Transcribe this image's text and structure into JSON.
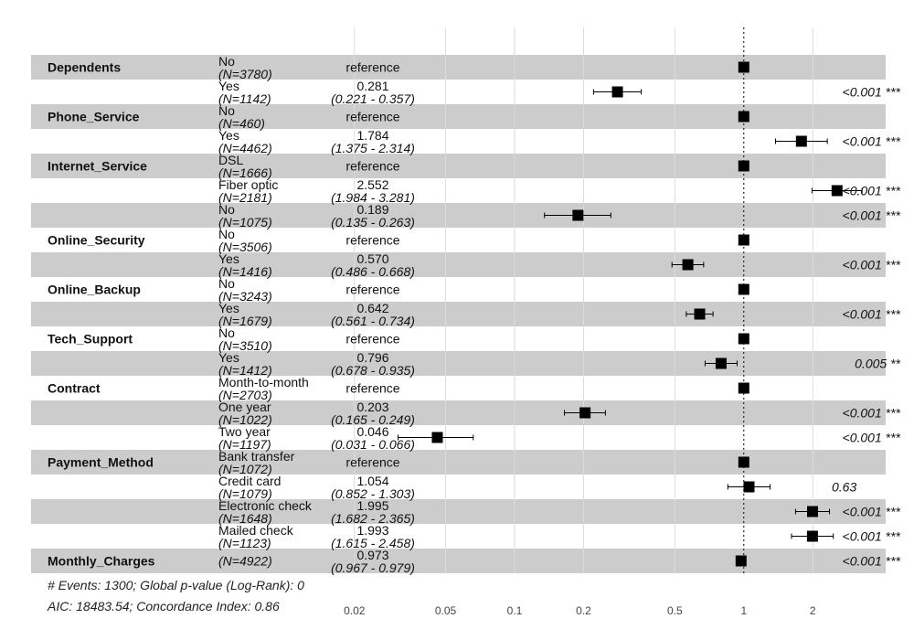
{
  "chart_data": {
    "type": "forest",
    "title": "",
    "xlabel": "",
    "ylabel": "",
    "x_scale": "log",
    "xlim": [
      0.0155,
      3.9
    ],
    "reference_line": 1,
    "grid": true,
    "x_ticks": [
      {
        "value": 0.02,
        "label": "0.02"
      },
      {
        "value": 0.05,
        "label": "0.05"
      },
      {
        "value": 0.1,
        "label": "0.1"
      },
      {
        "value": 0.2,
        "label": "0.2"
      },
      {
        "value": 0.5,
        "label": "0.5"
      },
      {
        "value": 1,
        "label": "1"
      },
      {
        "value": 2,
        "label": "2"
      }
    ],
    "rows": [
      {
        "variable": "Dependents",
        "level": "No",
        "n": "(N=3780)",
        "estimate": 1,
        "estimate_text": "reference",
        "ci_text": "",
        "lower": 1,
        "upper": 1,
        "p_text": "",
        "shaded": true
      },
      {
        "variable": "",
        "level": "Yes",
        "n": "(N=1142)",
        "estimate": 0.281,
        "estimate_text": "0.281",
        "ci_text": "(0.221 - 0.357)",
        "lower": 0.221,
        "upper": 0.357,
        "p_text": "<0.001 ***",
        "shaded": false
      },
      {
        "variable": "Phone_Service",
        "level": "No",
        "n": "(N=460)",
        "estimate": 1,
        "estimate_text": "reference",
        "ci_text": "",
        "lower": 1,
        "upper": 1,
        "p_text": "",
        "shaded": true
      },
      {
        "variable": "",
        "level": "Yes",
        "n": "(N=4462)",
        "estimate": 1.784,
        "estimate_text": "1.784",
        "ci_text": "(1.375 - 2.314)",
        "lower": 1.375,
        "upper": 2.314,
        "p_text": "<0.001 ***",
        "shaded": false
      },
      {
        "variable": "Internet_Service",
        "level": "DSL",
        "n": "(N=1666)",
        "estimate": 1,
        "estimate_text": "reference",
        "ci_text": "",
        "lower": 1,
        "upper": 1,
        "p_text": "",
        "shaded": true
      },
      {
        "variable": "",
        "level": "Fiber optic",
        "n": "(N=2181)",
        "estimate": 2.552,
        "estimate_text": "2.552",
        "ci_text": "(1.984 - 3.281)",
        "lower": 1.984,
        "upper": 3.281,
        "p_text": "<0.001 ***",
        "shaded": false
      },
      {
        "variable": "",
        "level": "No",
        "n": "(N=1075)",
        "estimate": 0.189,
        "estimate_text": "0.189",
        "ci_text": "(0.135 - 0.263)",
        "lower": 0.135,
        "upper": 0.263,
        "p_text": "<0.001 ***",
        "shaded": true
      },
      {
        "variable": "Online_Security",
        "level": "No",
        "n": "(N=3506)",
        "estimate": 1,
        "estimate_text": "reference",
        "ci_text": "",
        "lower": 1,
        "upper": 1,
        "p_text": "",
        "shaded": false
      },
      {
        "variable": "",
        "level": "Yes",
        "n": "(N=1416)",
        "estimate": 0.57,
        "estimate_text": "0.570",
        "ci_text": "(0.486 - 0.668)",
        "lower": 0.486,
        "upper": 0.668,
        "p_text": "<0.001 ***",
        "shaded": true
      },
      {
        "variable": "Online_Backup",
        "level": "No",
        "n": "(N=3243)",
        "estimate": 1,
        "estimate_text": "reference",
        "ci_text": "",
        "lower": 1,
        "upper": 1,
        "p_text": "",
        "shaded": false
      },
      {
        "variable": "",
        "level": "Yes",
        "n": "(N=1679)",
        "estimate": 0.642,
        "estimate_text": "0.642",
        "ci_text": "(0.561 - 0.734)",
        "lower": 0.561,
        "upper": 0.734,
        "p_text": "<0.001 ***",
        "shaded": true
      },
      {
        "variable": "Tech_Support",
        "level": "No",
        "n": "(N=3510)",
        "estimate": 1,
        "estimate_text": "reference",
        "ci_text": "",
        "lower": 1,
        "upper": 1,
        "p_text": "",
        "shaded": false
      },
      {
        "variable": "",
        "level": "Yes",
        "n": "(N=1412)",
        "estimate": 0.796,
        "estimate_text": "0.796",
        "ci_text": "(0.678 - 0.935)",
        "lower": 0.678,
        "upper": 0.935,
        "p_text": "0.005 **",
        "shaded": true
      },
      {
        "variable": "Contract",
        "level": "Month-to-month",
        "n": "(N=2703)",
        "estimate": 1,
        "estimate_text": "reference",
        "ci_text": "",
        "lower": 1,
        "upper": 1,
        "p_text": "",
        "shaded": false
      },
      {
        "variable": "",
        "level": "One year",
        "n": "(N=1022)",
        "estimate": 0.203,
        "estimate_text": "0.203",
        "ci_text": "(0.165 - 0.249)",
        "lower": 0.165,
        "upper": 0.249,
        "p_text": "<0.001 ***",
        "shaded": true
      },
      {
        "variable": "",
        "level": "Two year",
        "n": "(N=1197)",
        "estimate": 0.046,
        "estimate_text": "0.046",
        "ci_text": "(0.031 - 0.066)",
        "lower": 0.031,
        "upper": 0.066,
        "p_text": "<0.001 ***",
        "shaded": false
      },
      {
        "variable": "Payment_Method",
        "level": "Bank transfer",
        "n": "(N=1072)",
        "estimate": 1,
        "estimate_text": "reference",
        "ci_text": "",
        "lower": 1,
        "upper": 1,
        "p_text": "",
        "shaded": true
      },
      {
        "variable": "",
        "level": "Credit card",
        "n": "(N=1079)",
        "estimate": 1.054,
        "estimate_text": "1.054",
        "ci_text": "(0.852 - 1.303)",
        "lower": 0.852,
        "upper": 1.303,
        "p_text": "0.63",
        "shaded": false
      },
      {
        "variable": "",
        "level": "Electronic check",
        "n": "(N=1648)",
        "estimate": 1.995,
        "estimate_text": "1.995",
        "ci_text": "(1.682 - 2.365)",
        "lower": 1.682,
        "upper": 2.365,
        "p_text": "<0.001 ***",
        "shaded": true
      },
      {
        "variable": "",
        "level": "Mailed check",
        "n": "(N=1123)",
        "estimate": 1.993,
        "estimate_text": "1.993",
        "ci_text": "(1.615 - 2.458)",
        "lower": 1.615,
        "upper": 2.458,
        "p_text": "<0.001 ***",
        "shaded": false
      },
      {
        "variable": "Monthly_Charges",
        "level": "",
        "n": "(N=4922)",
        "estimate": 0.973,
        "estimate_text": "0.973",
        "ci_text": "(0.967 - 0.979)",
        "lower": 0.967,
        "upper": 0.979,
        "p_text": "<0.001 ***",
        "shaded": true
      }
    ],
    "footer_lines": [
      "# Events: 1300; Global p-value (Log-Rank): 0",
      "AIC: 18483.54; Concordance Index: 0.86"
    ],
    "colors": {
      "stripe": "#cccccc",
      "grid": "#dcdcdc",
      "marker": "#000000",
      "text": "#111111"
    }
  }
}
